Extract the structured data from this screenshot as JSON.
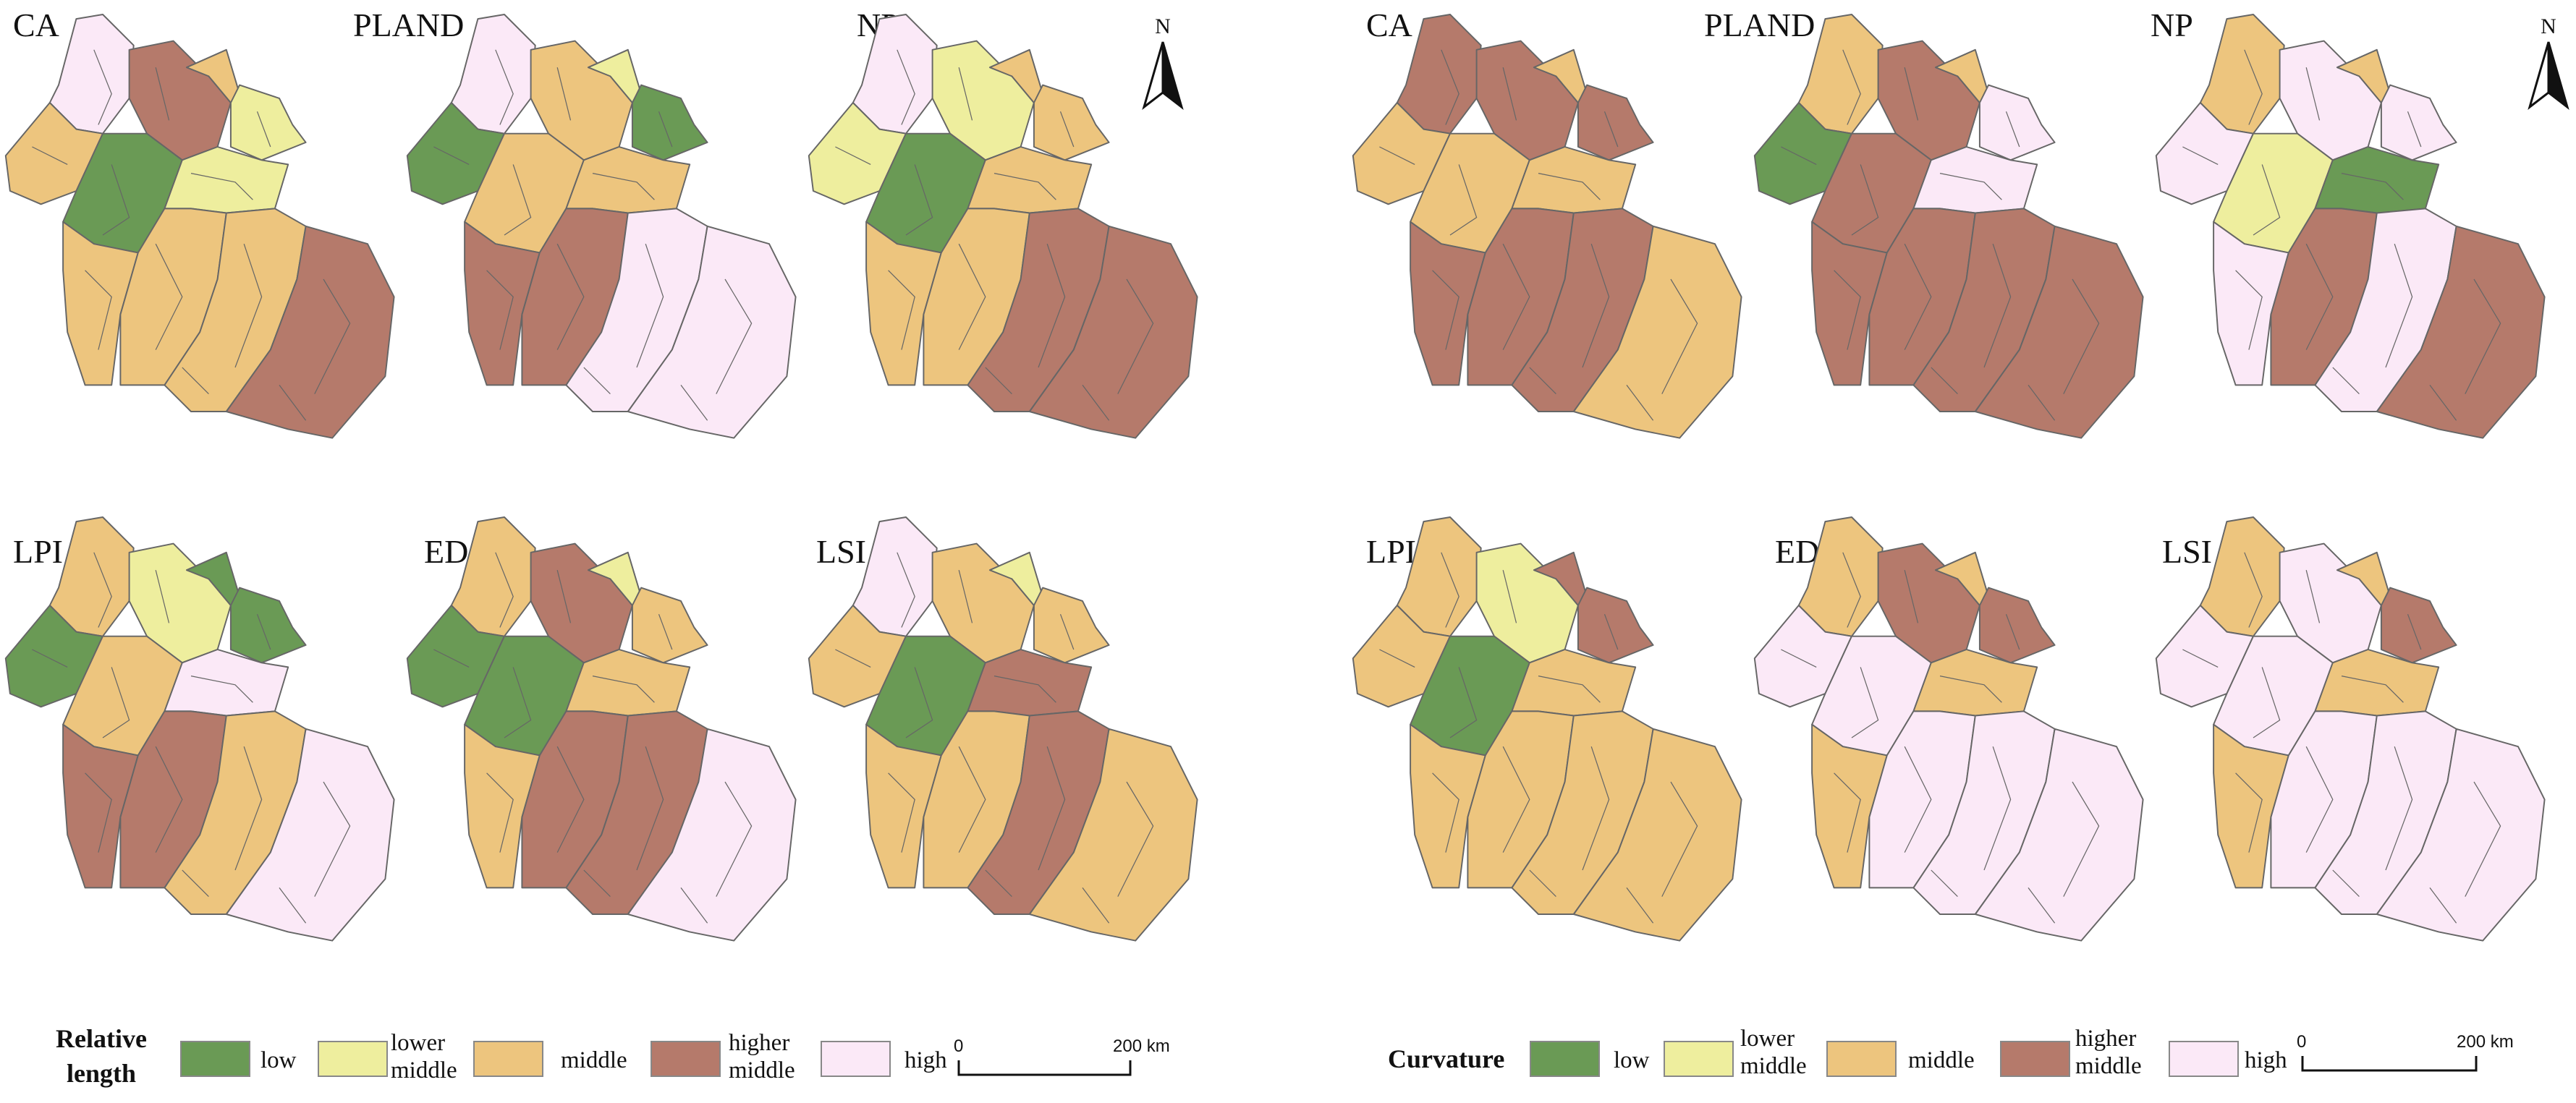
{
  "colors": {
    "low": "#6a9a55",
    "lower_middle": "#eeee9e",
    "middle": "#edc57e",
    "higher_middle": "#b57a6b",
    "high": "#fbe9f7",
    "outline": "#666666"
  },
  "panels": [
    {
      "id": "relative-length",
      "north_label": "N",
      "legend": {
        "title_lines": [
          "Relative",
          "length"
        ],
        "items": [
          {
            "class": "low",
            "lines": [
              "low"
            ]
          },
          {
            "class": "lower_middle",
            "lines": [
              "lower",
              "middle"
            ]
          },
          {
            "class": "middle",
            "lines": [
              "middle"
            ]
          },
          {
            "class": "higher_middle",
            "lines": [
              "higher",
              "middle"
            ]
          },
          {
            "class": "high",
            "lines": [
              "high"
            ]
          }
        ]
      },
      "scale_bar": {
        "start": "0",
        "end": "200 km"
      },
      "maps": [
        {
          "label": "CA",
          "classes": [
            "high",
            "higher_middle",
            "middle",
            "lower_middle",
            "middle",
            "low",
            "lower_middle",
            "middle",
            "middle",
            "middle",
            "higher_middle"
          ]
        },
        {
          "label": "PLAND",
          "classes": [
            "high",
            "middle",
            "lower_middle",
            "low",
            "low",
            "middle",
            "middle",
            "higher_middle",
            "higher_middle",
            "high",
            "high"
          ]
        },
        {
          "label": "NP",
          "classes": [
            "high",
            "lower_middle",
            "middle",
            "middle",
            "lower_middle",
            "low",
            "middle",
            "middle",
            "middle",
            "higher_middle",
            "higher_middle"
          ]
        },
        {
          "label": "LPI",
          "classes": [
            "middle",
            "lower_middle",
            "low",
            "low",
            "low",
            "middle",
            "high",
            "higher_middle",
            "higher_middle",
            "middle",
            "high"
          ]
        },
        {
          "label": "ED",
          "classes": [
            "middle",
            "higher_middle",
            "lower_middle",
            "middle",
            "low",
            "low",
            "middle",
            "middle",
            "higher_middle",
            "higher_middle",
            "high"
          ]
        },
        {
          "label": "LSI",
          "classes": [
            "high",
            "middle",
            "lower_middle",
            "middle",
            "middle",
            "low",
            "higher_middle",
            "middle",
            "middle",
            "higher_middle",
            "middle"
          ]
        }
      ]
    },
    {
      "id": "curvature",
      "north_label": "N",
      "legend": {
        "title_lines": [
          "Curvature"
        ],
        "items": [
          {
            "class": "low",
            "lines": [
              "low"
            ]
          },
          {
            "class": "lower_middle",
            "lines": [
              "lower",
              "middle"
            ]
          },
          {
            "class": "middle",
            "lines": [
              "middle"
            ]
          },
          {
            "class": "higher_middle",
            "lines": [
              "higher",
              "middle"
            ]
          },
          {
            "class": "high",
            "lines": [
              "high"
            ]
          }
        ]
      },
      "scale_bar": {
        "start": "0",
        "end": "200 km"
      },
      "maps": [
        {
          "label": "CA",
          "classes": [
            "higher_middle",
            "higher_middle",
            "middle",
            "higher_middle",
            "middle",
            "middle",
            "middle",
            "higher_middle",
            "higher_middle",
            "higher_middle",
            "middle"
          ]
        },
        {
          "label": "PLAND",
          "classes": [
            "middle",
            "higher_middle",
            "middle",
            "high",
            "low",
            "higher_middle",
            "high",
            "higher_middle",
            "higher_middle",
            "higher_middle",
            "higher_middle"
          ]
        },
        {
          "label": "NP",
          "classes": [
            "middle",
            "high",
            "middle",
            "high",
            "high",
            "lower_middle",
            "low",
            "high",
            "higher_middle",
            "high",
            "higher_middle"
          ]
        },
        {
          "label": "LPI",
          "classes": [
            "middle",
            "lower_middle",
            "higher_middle",
            "higher_middle",
            "middle",
            "low",
            "middle",
            "middle",
            "middle",
            "middle",
            "middle"
          ]
        },
        {
          "label": "ED",
          "classes": [
            "middle",
            "higher_middle",
            "middle",
            "higher_middle",
            "high",
            "high",
            "middle",
            "middle",
            "high",
            "high",
            "high"
          ]
        },
        {
          "label": "LSI",
          "classes": [
            "middle",
            "high",
            "middle",
            "higher_middle",
            "high",
            "high",
            "middle",
            "middle",
            "high",
            "high",
            "high"
          ]
        }
      ]
    }
  ]
}
